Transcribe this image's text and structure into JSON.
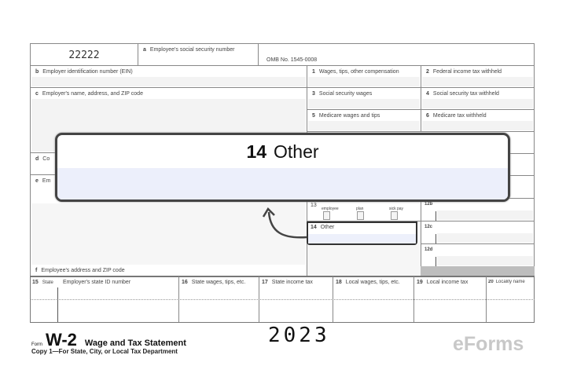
{
  "form": {
    "control_code": "22222",
    "box_a": "Employee's social security number",
    "omb": "OMB No. 1545-0008",
    "box_b": "Employer identification number (EIN)",
    "box_c": "Employer's name, address, and ZIP code",
    "box_d_letter": "d",
    "box_d": "Co",
    "box_e_letter": "e",
    "box_e": "Em",
    "box_f": "Employee's address and ZIP code",
    "boxes": [
      {
        "num": "1",
        "label": "Wages, tips, other compensation"
      },
      {
        "num": "2",
        "label": "Federal income tax withheld"
      },
      {
        "num": "3",
        "label": "Social security wages"
      },
      {
        "num": "4",
        "label": "Social security tax withheld"
      },
      {
        "num": "5",
        "label": "Medicare wages and tips"
      },
      {
        "num": "6",
        "label": "Medicare tax withheld"
      }
    ],
    "box_13": {
      "num": "13",
      "options": [
        "employee",
        "plan",
        "sick pay"
      ]
    },
    "box_14": {
      "num": "14",
      "label": "Other"
    },
    "box_12": [
      "12b",
      "12c",
      "12d"
    ],
    "state_headers": [
      {
        "num": "15",
        "label": "State"
      },
      {
        "num": "",
        "label": "Employer's state ID number"
      },
      {
        "num": "16",
        "label": "State wages, tips, etc."
      },
      {
        "num": "17",
        "label": "State income tax"
      },
      {
        "num": "18",
        "label": "Local wages, tips, etc."
      },
      {
        "num": "19",
        "label": "Local income tax"
      },
      {
        "num": "20",
        "label": "Locality name"
      }
    ],
    "footer": {
      "form_word": "Form",
      "form_name": "W-2",
      "title": "Wage and Tax Statement",
      "year": "2023",
      "copy": "Copy 1—For State, City, or Local Tax Department"
    }
  },
  "callout": {
    "num": "14",
    "label": "Other"
  },
  "logo": "eForms",
  "colors": {
    "border": "#444444",
    "callout_fill": "#eceffb"
  }
}
